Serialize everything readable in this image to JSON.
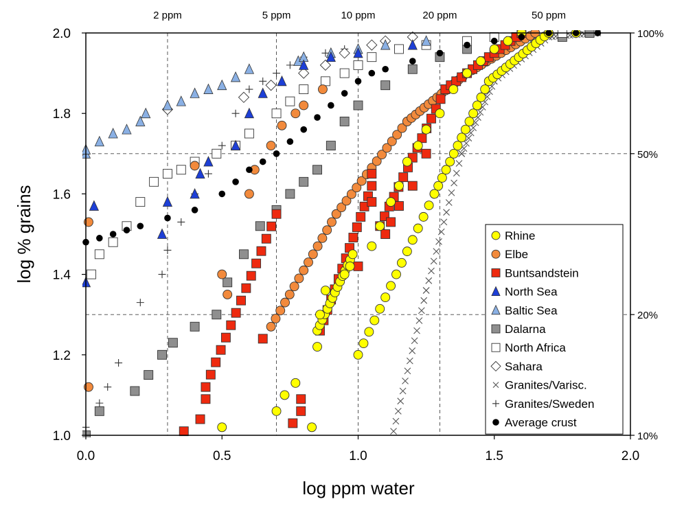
{
  "chart_data": {
    "type": "scatter",
    "title": "",
    "xlabel": "log ppm water",
    "ylabel": "log % grains",
    "xlim": [
      0.0,
      2.0
    ],
    "ylim": [
      1.0,
      2.0
    ],
    "x_ticks": [
      "0.0",
      "0.5",
      "1.0",
      "1.5",
      "2.0"
    ],
    "y_ticks": [
      "1.0",
      "1.2",
      "1.4",
      "1.6",
      "1.8",
      "2.0"
    ],
    "top_axis": [
      {
        "label": "2 ppm",
        "x": 0.3
      },
      {
        "label": "5 ppm",
        "x": 0.7
      },
      {
        "label": "10 ppm",
        "x": 1.0
      },
      {
        "label": "20 ppm",
        "x": 1.3
      },
      {
        "label": "50 ppm",
        "x": 1.7
      }
    ],
    "right_axis": [
      {
        "label": "100%",
        "y": 2.0
      },
      {
        "label": "50%",
        "y": 1.7
      },
      {
        "label": "20%",
        "y": 1.3
      },
      {
        "label": "10%",
        "y": 1.0
      }
    ],
    "grid": {
      "vertical_dashed": [
        0.3,
        0.7,
        1.0,
        1.3
      ],
      "horizontal_dashed": [
        1.3,
        1.7
      ]
    },
    "legend_position": "lower-right",
    "series": [
      {
        "name": "Rhine",
        "marker": "circle",
        "color": "#ffff00",
        "points": [
          [
            0.5,
            1.02
          ],
          [
            0.7,
            1.06
          ],
          [
            0.73,
            1.1
          ],
          [
            0.77,
            1.13
          ],
          [
            0.83,
            1.02
          ],
          [
            0.85,
            1.22
          ],
          [
            0.86,
            1.3
          ],
          [
            0.88,
            1.36
          ],
          [
            0.95,
            1.4
          ],
          [
            0.97,
            1.42
          ],
          [
            1.05,
            1.47
          ],
          [
            1.08,
            1.52
          ],
          [
            1.12,
            1.58
          ],
          [
            1.15,
            1.62
          ],
          [
            1.18,
            1.68
          ],
          [
            1.22,
            1.72
          ],
          [
            1.25,
            1.76
          ],
          [
            1.3,
            1.8
          ],
          [
            1.35,
            1.86
          ],
          [
            1.4,
            1.9
          ],
          [
            1.45,
            1.93
          ],
          [
            1.5,
            1.96
          ],
          [
            1.55,
            1.98
          ],
          [
            1.6,
            2.0
          ],
          [
            1.7,
            2.0
          ],
          [
            1.8,
            2.0
          ]
        ],
        "steps": [
          [
            0.85,
            1.26,
            0.98,
            1.45
          ],
          [
            1.0,
            1.2,
            1.28,
            1.6
          ],
          [
            1.28,
            1.6,
            1.48,
            1.88
          ],
          [
            1.48,
            1.88,
            1.7,
            2.0
          ]
        ]
      },
      {
        "name": "Elbe",
        "marker": "circle",
        "color": "#f28a3c",
        "points": [
          [
            0.01,
            1.12
          ],
          [
            0.01,
            1.53
          ],
          [
            0.4,
            1.67
          ],
          [
            0.5,
            1.4
          ],
          [
            0.52,
            1.35
          ],
          [
            0.6,
            1.6
          ],
          [
            0.62,
            1.66
          ],
          [
            0.68,
            1.72
          ],
          [
            0.72,
            1.77
          ],
          [
            0.77,
            1.8
          ],
          [
            0.8,
            1.82
          ],
          [
            0.87,
            1.86
          ]
        ],
        "steps": [
          [
            0.68,
            1.27,
            0.92,
            1.55
          ],
          [
            0.92,
            1.55,
            1.18,
            1.78
          ],
          [
            1.18,
            1.78,
            1.4,
            1.9
          ],
          [
            1.4,
            1.9,
            1.65,
            2.0
          ]
        ]
      },
      {
        "name": "Buntsandstein",
        "marker": "square",
        "color": "#ee2a0f",
        "points": [
          [
            0.36,
            1.01
          ],
          [
            0.42,
            1.04
          ],
          [
            0.44,
            1.09
          ],
          [
            0.65,
            1.24
          ],
          [
            0.76,
            1.03
          ],
          [
            0.79,
            1.06
          ],
          [
            0.79,
            1.09
          ],
          [
            1.0,
            1.42
          ],
          [
            1.05,
            1.58
          ],
          [
            1.05,
            1.65
          ],
          [
            1.1,
            1.5
          ],
          [
            1.12,
            1.53
          ],
          [
            1.15,
            1.57
          ],
          [
            1.2,
            1.62
          ],
          [
            1.25,
            1.7
          ]
        ],
        "steps": [
          [
            0.44,
            1.12,
            0.7,
            1.55
          ],
          [
            0.86,
            1.26,
            1.05,
            1.62
          ],
          [
            1.08,
            1.52,
            1.32,
            1.86
          ],
          [
            1.32,
            1.86,
            1.6,
            2.0
          ]
        ]
      },
      {
        "name": "North Sea",
        "marker": "triangle",
        "color": "#1d3fd6",
        "points": [
          [
            0.0,
            1.38
          ],
          [
            0.03,
            1.57
          ],
          [
            0.28,
            1.5
          ],
          [
            0.3,
            1.58
          ],
          [
            0.4,
            1.6
          ],
          [
            0.42,
            1.65
          ],
          [
            0.45,
            1.68
          ],
          [
            0.55,
            1.72
          ],
          [
            0.6,
            1.8
          ],
          [
            0.65,
            1.85
          ],
          [
            0.72,
            1.88
          ],
          [
            0.8,
            1.92
          ],
          [
            0.9,
            1.94
          ],
          [
            1.0,
            1.95
          ],
          [
            1.2,
            1.97
          ]
        ]
      },
      {
        "name": "Baltic Sea",
        "marker": "triangle",
        "color": "#8ab0e4",
        "points": [
          [
            0.0,
            1.7
          ],
          [
            0.0,
            1.71
          ],
          [
            0.05,
            1.73
          ],
          [
            0.1,
            1.75
          ],
          [
            0.15,
            1.76
          ],
          [
            0.2,
            1.78
          ],
          [
            0.22,
            1.8
          ],
          [
            0.3,
            1.82
          ],
          [
            0.35,
            1.83
          ],
          [
            0.4,
            1.85
          ],
          [
            0.45,
            1.86
          ],
          [
            0.5,
            1.87
          ],
          [
            0.55,
            1.89
          ],
          [
            0.6,
            1.91
          ],
          [
            0.78,
            1.93
          ],
          [
            0.8,
            1.94
          ],
          [
            0.9,
            1.95
          ],
          [
            1.0,
            1.96
          ],
          [
            1.1,
            1.97
          ],
          [
            1.25,
            1.98
          ]
        ]
      },
      {
        "name": "Dalarna",
        "marker": "square",
        "color": "#8f8f8f",
        "points": [
          [
            0.0,
            1.0
          ],
          [
            0.05,
            1.06
          ],
          [
            0.18,
            1.11
          ],
          [
            0.23,
            1.15
          ],
          [
            0.28,
            1.2
          ],
          [
            0.32,
            1.23
          ],
          [
            0.4,
            1.27
          ],
          [
            0.48,
            1.3
          ],
          [
            0.52,
            1.38
          ],
          [
            0.58,
            1.45
          ],
          [
            0.64,
            1.52
          ],
          [
            0.7,
            1.56
          ],
          [
            0.75,
            1.6
          ],
          [
            0.8,
            1.63
          ],
          [
            0.85,
            1.66
          ],
          [
            0.9,
            1.72
          ],
          [
            0.95,
            1.78
          ],
          [
            1.0,
            1.82
          ],
          [
            1.1,
            1.87
          ],
          [
            1.2,
            1.91
          ],
          [
            1.3,
            1.94
          ],
          [
            1.4,
            1.96
          ],
          [
            1.55,
            1.97
          ],
          [
            1.65,
            1.98
          ],
          [
            1.75,
            1.99
          ],
          [
            1.85,
            2.0
          ]
        ]
      },
      {
        "name": "North Africa",
        "marker": "square",
        "color": "#ffffff",
        "points": [
          [
            0.02,
            1.4
          ],
          [
            0.05,
            1.45
          ],
          [
            0.1,
            1.48
          ],
          [
            0.15,
            1.52
          ],
          [
            0.2,
            1.58
          ],
          [
            0.25,
            1.63
          ],
          [
            0.3,
            1.65
          ],
          [
            0.35,
            1.66
          ],
          [
            0.4,
            1.68
          ],
          [
            0.48,
            1.7
          ],
          [
            0.55,
            1.72
          ],
          [
            0.6,
            1.75
          ],
          [
            0.7,
            1.8
          ],
          [
            0.75,
            1.83
          ],
          [
            0.8,
            1.86
          ],
          [
            0.88,
            1.88
          ],
          [
            0.95,
            1.9
          ],
          [
            1.0,
            1.92
          ],
          [
            1.05,
            1.94
          ],
          [
            1.15,
            1.96
          ],
          [
            1.25,
            1.97
          ],
          [
            1.4,
            1.98
          ],
          [
            1.5,
            1.99
          ],
          [
            1.6,
            2.0
          ],
          [
            1.75,
            2.0
          ]
        ]
      },
      {
        "name": "Sahara",
        "marker": "diamond",
        "color": "#ffffff",
        "points": [
          [
            0.3,
            1.81
          ],
          [
            0.58,
            1.84
          ],
          [
            0.68,
            1.87
          ],
          [
            0.8,
            1.9
          ],
          [
            0.88,
            1.92
          ],
          [
            0.95,
            1.95
          ],
          [
            1.05,
            1.97
          ],
          [
            1.1,
            1.98
          ],
          [
            1.2,
            1.99
          ]
        ]
      },
      {
        "name": "Granites/Varisc.",
        "marker": "x",
        "color": "#555555",
        "steps": [
          [
            1.13,
            1.01,
            1.25,
            1.36
          ],
          [
            1.25,
            1.36,
            1.38,
            1.7
          ],
          [
            1.38,
            1.7,
            1.5,
            1.88
          ],
          [
            1.5,
            1.88,
            1.7,
            1.99
          ],
          [
            1.7,
            1.99,
            1.88,
            2.0
          ]
        ]
      },
      {
        "name": "Granites/Sweden",
        "marker": "plus",
        "color": "#333333",
        "points": [
          [
            0.0,
            1.02
          ],
          [
            0.05,
            1.08
          ],
          [
            0.08,
            1.12
          ],
          [
            0.12,
            1.18
          ],
          [
            0.2,
            1.33
          ],
          [
            0.28,
            1.4
          ],
          [
            0.3,
            1.46
          ],
          [
            0.35,
            1.53
          ],
          [
            0.4,
            1.6
          ],
          [
            0.45,
            1.65
          ],
          [
            0.5,
            1.72
          ],
          [
            0.55,
            1.8
          ],
          [
            0.6,
            1.86
          ],
          [
            0.65,
            1.88
          ],
          [
            0.7,
            1.9
          ],
          [
            0.75,
            1.92
          ],
          [
            0.8,
            1.94
          ],
          [
            0.88,
            1.95
          ],
          [
            0.95,
            1.96
          ]
        ]
      },
      {
        "name": "Average crust",
        "marker": "dot",
        "color": "#000000",
        "points": [
          [
            0.0,
            1.48
          ],
          [
            0.05,
            1.49
          ],
          [
            0.1,
            1.5
          ],
          [
            0.15,
            1.51
          ],
          [
            0.2,
            1.52
          ],
          [
            0.3,
            1.54
          ],
          [
            0.4,
            1.56
          ],
          [
            0.5,
            1.6
          ],
          [
            0.55,
            1.63
          ],
          [
            0.6,
            1.66
          ],
          [
            0.65,
            1.68
          ],
          [
            0.7,
            1.7
          ],
          [
            0.75,
            1.73
          ],
          [
            0.8,
            1.76
          ],
          [
            0.85,
            1.79
          ],
          [
            0.9,
            1.82
          ],
          [
            0.95,
            1.85
          ],
          [
            1.0,
            1.88
          ],
          [
            1.05,
            1.9
          ],
          [
            1.1,
            1.91
          ],
          [
            1.2,
            1.93
          ],
          [
            1.3,
            1.95
          ],
          [
            1.4,
            1.97
          ],
          [
            1.5,
            1.98
          ],
          [
            1.6,
            1.99
          ],
          [
            1.7,
            2.0
          ],
          [
            1.8,
            2.0
          ],
          [
            1.88,
            2.0
          ]
        ]
      }
    ]
  }
}
